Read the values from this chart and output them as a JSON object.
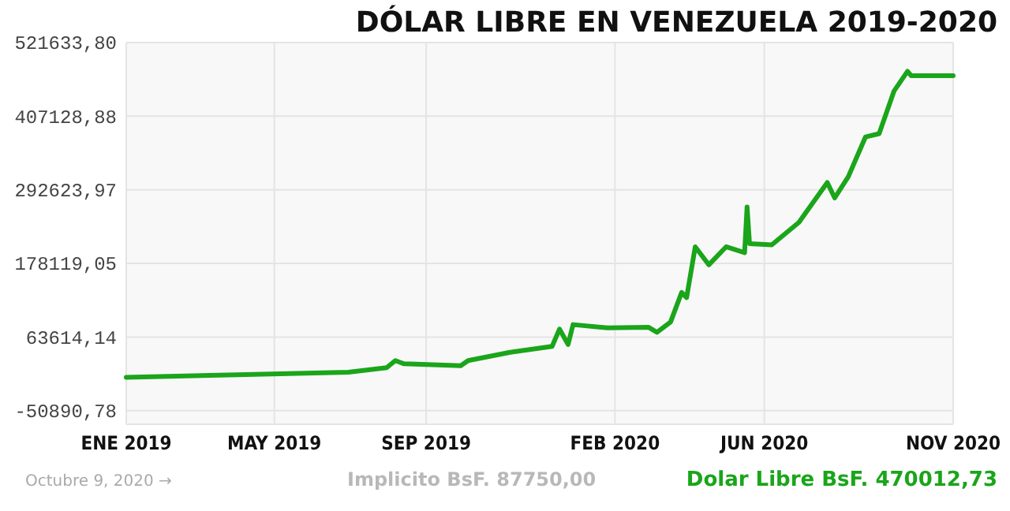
{
  "chart_data": {
    "type": "line",
    "title": "DÓLAR LIBRE EN VENEZUELA 2019-2020",
    "x": [
      "2019-01-01",
      "2019-04-01",
      "2019-06-30",
      "2019-07-31",
      "2019-08-07",
      "2019-08-14",
      "2019-09-29",
      "2019-10-05",
      "2019-11-08",
      "2019-12-12",
      "2019-12-18",
      "2019-12-25",
      "2019-12-29",
      "2020-01-26",
      "2020-02-28",
      "2020-03-06",
      "2020-03-17",
      "2020-03-26",
      "2020-03-30",
      "2020-04-06",
      "2020-04-17",
      "2020-05-01",
      "2020-05-16",
      "2020-05-18",
      "2020-05-20",
      "2020-06-07",
      "2020-06-29",
      "2020-07-22",
      "2020-07-28",
      "2020-08-08",
      "2020-08-22",
      "2020-09-02",
      "2020-09-14",
      "2020-09-25",
      "2020-09-28",
      "2020-11-01"
    ],
    "series": [
      {
        "color": "#1aa51a",
        "values": [
          1000,
          5000,
          9000,
          16000,
          27000,
          22000,
          19000,
          27000,
          40000,
          49000,
          76000,
          52000,
          83000,
          78000,
          79000,
          71000,
          87000,
          133000,
          125000,
          204000,
          176000,
          204000,
          195000,
          266000,
          209000,
          207000,
          242000,
          304000,
          280000,
          313000,
          375000,
          380000,
          446000,
          477000,
          470000,
          470000
        ]
      }
    ],
    "xlim": [
      "2019-01-01",
      "2020-11-01"
    ],
    "xticks": [
      {
        "value": "2019-01-01",
        "label": "ENE 2019"
      },
      {
        "value": "2019-05-01",
        "label": "MAY 2019"
      },
      {
        "value": "2019-09-01",
        "label": "SEP 2019"
      },
      {
        "value": "2020-02-01",
        "label": "FEB 2020"
      },
      {
        "value": "2020-06-01",
        "label": "JUN 2020"
      },
      {
        "value": "2020-11-01",
        "label": "NOV 2020"
      }
    ],
    "ylim": [
      -72000,
      521633.8
    ],
    "yticks": [
      {
        "value": -50890.78,
        "label": "-50890,78"
      },
      {
        "value": 63614.14,
        "label": "63614,14"
      },
      {
        "value": 178119.05,
        "label": "178119,05"
      },
      {
        "value": 292623.97,
        "label": "292623,97"
      },
      {
        "value": 407128.88,
        "label": "407128,88"
      },
      {
        "value": 521633.8,
        "label": "521633,80"
      }
    ],
    "grid": true,
    "marker": "none",
    "line_style": "solid",
    "annotations": [
      "Octubre 9, 2020 →",
      "Implicito BsF. 87750,00",
      "Dolar Libre BsF. 470012,73"
    ]
  }
}
